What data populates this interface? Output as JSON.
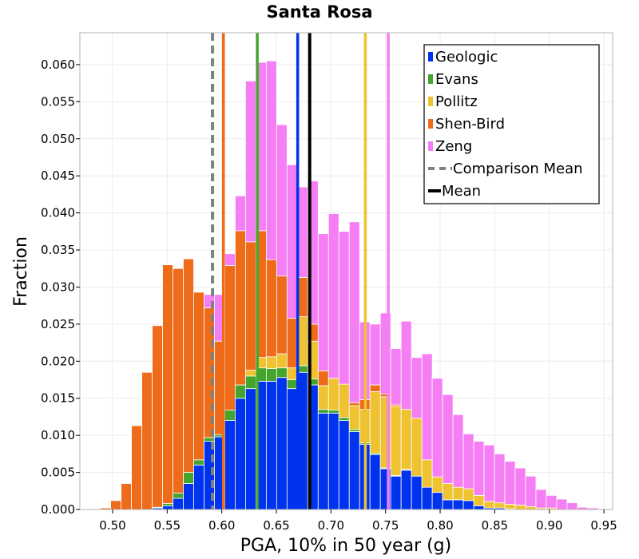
{
  "chart_data": {
    "type": "bar",
    "stacked": true,
    "title": "Santa Rosa",
    "xlabel": "PGA, 10% in 50 year (g)",
    "ylabel": "Fraction",
    "xlim": [
      0.47,
      0.958
    ],
    "ylim": [
      0,
      0.0643
    ],
    "grid": true,
    "legend_position": "top-right",
    "x_ticks": [
      0.5,
      0.55,
      0.6,
      0.65,
      0.7,
      0.75,
      0.8,
      0.85,
      0.9,
      0.95
    ],
    "x_tick_labels": [
      "0.50",
      "0.55",
      "0.60",
      "0.65",
      "0.70",
      "0.75",
      "0.80",
      "0.85",
      "0.90",
      "0.95"
    ],
    "y_ticks": [
      0.0,
      0.005,
      0.01,
      0.015,
      0.02,
      0.025,
      0.03,
      0.035,
      0.04,
      0.045,
      0.05,
      0.055,
      0.06
    ],
    "y_tick_labels": [
      "0.000",
      "0.005",
      "0.010",
      "0.015",
      "0.020",
      "0.025",
      "0.030",
      "0.035",
      "0.040",
      "0.045",
      "0.050",
      "0.055",
      "0.060"
    ],
    "bin_width": 0.0095,
    "bin_centers": [
      0.4935,
      0.503,
      0.5125,
      0.522,
      0.5315,
      0.541,
      0.5505,
      0.56,
      0.5695,
      0.579,
      0.5885,
      0.598,
      0.6075,
      0.617,
      0.6265,
      0.636,
      0.6455,
      0.655,
      0.6645,
      0.674,
      0.6835,
      0.693,
      0.7025,
      0.712,
      0.7215,
      0.731,
      0.7405,
      0.75,
      0.7595,
      0.769,
      0.7785,
      0.788,
      0.7975,
      0.807,
      0.8165,
      0.826,
      0.8355,
      0.845,
      0.8545,
      0.864,
      0.8735,
      0.883,
      0.8925,
      0.902,
      0.9115,
      0.921,
      0.9305,
      0.94,
      0.9495
    ],
    "series": [
      {
        "name": "Geologic",
        "color": "#0033ee",
        "values": [
          0,
          0,
          0,
          0,
          0,
          0.0002,
          0.0005,
          0.0015,
          0.0035,
          0.006,
          0.0092,
          0.0098,
          0.012,
          0.015,
          0.0163,
          0.0173,
          0.0173,
          0.0178,
          0.0163,
          0.0185,
          0.0168,
          0.013,
          0.013,
          0.012,
          0.0105,
          0.0088,
          0.0074,
          0.0055,
          0.0045,
          0.0053,
          0.0045,
          0.003,
          0.0023,
          0.0013,
          0.0013,
          0.0012,
          0.0005,
          0.0002,
          0.0002,
          0.0001,
          0,
          0,
          0,
          0,
          0,
          0,
          0,
          0,
          0
        ]
      },
      {
        "name": "Evans",
        "color": "#44a52e",
        "values": [
          0,
          0,
          0,
          0,
          0,
          0.0001,
          0.0003,
          0.0007,
          0.0015,
          0.0007,
          0.0005,
          0.0003,
          0.0014,
          0.0018,
          0.0017,
          0.0018,
          0.0017,
          0.0013,
          0.0012,
          0.0009,
          0.0008,
          0.0005,
          0.0004,
          0.0004,
          0.0003,
          0.0002,
          0.0002,
          0.0001,
          0.0001,
          0.0001,
          0,
          0,
          0,
          0,
          0,
          0,
          0,
          0,
          0,
          0,
          0,
          0,
          0,
          0,
          0,
          0,
          0,
          0,
          0
        ]
      },
      {
        "name": "Pollitz",
        "color": "#eec230",
        "values": [
          0,
          0,
          0,
          0,
          0,
          0,
          0,
          0,
          0,
          0,
          0,
          0,
          0,
          0,
          0.0008,
          0.0014,
          0.0016,
          0.0019,
          0.0016,
          0.0066,
          0.0051,
          0.0032,
          0.0043,
          0.0045,
          0.0032,
          0.0045,
          0.0083,
          0.0096,
          0.0093,
          0.0081,
          0.0078,
          0.0037,
          0.0021,
          0.0022,
          0.0017,
          0.0016,
          0.0014,
          0.0009,
          0.0007,
          0.0006,
          0.0006,
          0.0004,
          0.0002,
          0.0002,
          0,
          0,
          0,
          0,
          0
        ]
      },
      {
        "name": "Shen-Bird",
        "color": "#ee6b1a",
        "values": [
          0.0002,
          0.0012,
          0.0035,
          0.0113,
          0.0185,
          0.0245,
          0.0322,
          0.0303,
          0.0288,
          0.0226,
          0.0175,
          0.0126,
          0.0195,
          0.0208,
          0.0173,
          0.0171,
          0.0131,
          0.0105,
          0.0067,
          0.0053,
          0.0023,
          0.002,
          0,
          0,
          0.0004,
          0.0013,
          0.0009,
          0.0004,
          0.0002,
          0,
          0,
          0,
          0,
          0,
          0,
          0,
          0,
          0,
          0,
          0,
          0,
          0,
          0,
          0,
          0,
          0,
          0,
          0,
          0
        ]
      },
      {
        "name": "Zeng",
        "color": "#f57ef5",
        "values": [
          0,
          0,
          0,
          0,
          0,
          0,
          0,
          0,
          0,
          0,
          0.0018,
          0.0063,
          0.0016,
          0.0047,
          0.0217,
          0.0227,
          0.0268,
          0.0204,
          0.0207,
          0.0122,
          0.0193,
          0.0185,
          0.0222,
          0.0206,
          0.0244,
          0.0105,
          0.0082,
          0.0109,
          0.0076,
          0.0119,
          0.0082,
          0.0143,
          0.0133,
          0.012,
          0.0098,
          0.0074,
          0.0073,
          0.0076,
          0.0066,
          0.0058,
          0.005,
          0.0041,
          0.0025,
          0.0017,
          0.0014,
          0.0009,
          0.0003,
          0.0002,
          0.0001
        ]
      }
    ],
    "vlines": [
      {
        "name": "Geologic mean",
        "x": 0.6695,
        "color": "#0033ee",
        "style": "solid"
      },
      {
        "name": "Evans mean",
        "x": 0.6325,
        "color": "#44a52e",
        "style": "solid"
      },
      {
        "name": "Pollitz mean",
        "x": 0.7315,
        "color": "#eec230",
        "style": "solid"
      },
      {
        "name": "Shen-Bird mean",
        "x": 0.6015,
        "color": "#ee6b1a",
        "style": "solid"
      },
      {
        "name": "Zeng mean",
        "x": 0.7525,
        "color": "#f57ef5",
        "style": "solid"
      },
      {
        "name": "Comparison Mean",
        "x": 0.5915,
        "color": "#808080",
        "style": "dashed"
      },
      {
        "name": "Mean",
        "x": 0.6805,
        "color": "#000000",
        "style": "solid"
      }
    ],
    "legend": [
      {
        "label": "Geologic",
        "color": "#0033ee",
        "marker": "patch"
      },
      {
        "label": "Evans",
        "color": "#44a52e",
        "marker": "patch"
      },
      {
        "label": "Pollitz",
        "color": "#eec230",
        "marker": "patch"
      },
      {
        "label": "Shen-Bird",
        "color": "#ee6b1a",
        "marker": "patch"
      },
      {
        "label": "Zeng",
        "color": "#f57ef5",
        "marker": "patch"
      },
      {
        "label": "Comparison Mean",
        "color": "#808080",
        "marker": "dashed-line"
      },
      {
        "label": "Mean",
        "color": "#000000",
        "marker": "solid-line"
      }
    ]
  }
}
